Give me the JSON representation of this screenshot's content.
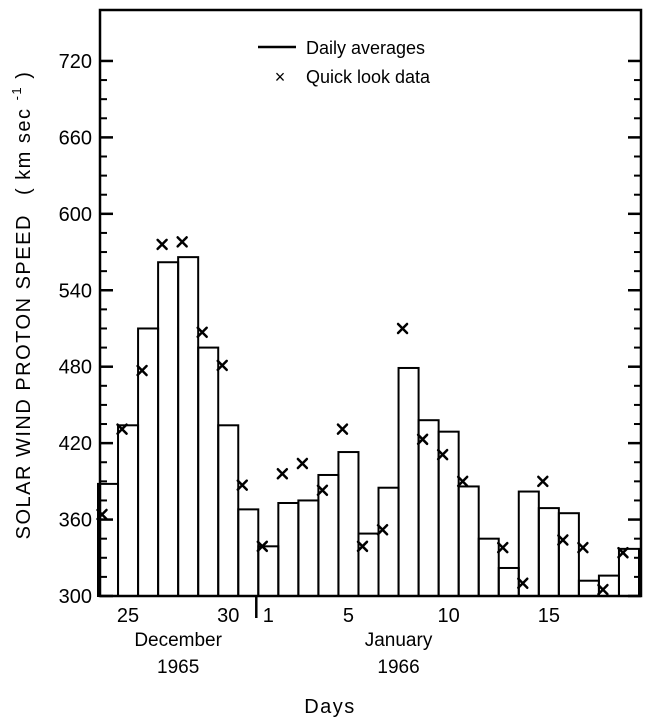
{
  "chart_data": {
    "type": "bar",
    "ylabel_main": "SOLAR WIND PROTON SPEED",
    "ylabel_unit_prefix": "( km sec",
    "ylabel_unit_exponent": "-1",
    "ylabel_unit_suffix": ")",
    "xlabel": "Days",
    "ylim": [
      300,
      760
    ],
    "yticks": [
      300,
      360,
      420,
      480,
      540,
      600,
      660,
      720
    ],
    "ytick_labels": [
      "300",
      "360",
      "420",
      "480",
      "540",
      "600",
      "660",
      "720"
    ],
    "xlim": [
      23.6,
      50.6
    ],
    "xtick_labels": [
      {
        "label": "25",
        "day": 25
      },
      {
        "label": "30",
        "day": 30
      },
      {
        "label": "1",
        "day": 32
      },
      {
        "label": "5",
        "day": 36
      },
      {
        "label": "10",
        "day": 41
      },
      {
        "label": "15",
        "day": 46
      }
    ],
    "month_boundary_day": 31.5,
    "month_labels": [
      {
        "month": "December",
        "year": "1965",
        "center_day": 27.5
      },
      {
        "month": "January",
        "year": "1966",
        "center_day": 38.5
      }
    ],
    "legend": {
      "placement": "top-center",
      "line_label": "Daily averages",
      "marker_label": "Quick look data",
      "marker_symbol": "×"
    },
    "daily_averages": [
      {
        "day": 24,
        "value": 388
      },
      {
        "day": 25,
        "value": 434
      },
      {
        "day": 26,
        "value": 510
      },
      {
        "day": 27,
        "value": 562
      },
      {
        "day": 28,
        "value": 566
      },
      {
        "day": 29,
        "value": 495
      },
      {
        "day": 30,
        "value": 434
      },
      {
        "day": 31,
        "value": 368
      },
      {
        "day": 32,
        "value": 339
      },
      {
        "day": 33,
        "value": 373
      },
      {
        "day": 34,
        "value": 375
      },
      {
        "day": 35,
        "value": 395
      },
      {
        "day": 36,
        "value": 413
      },
      {
        "day": 37,
        "value": 349
      },
      {
        "day": 38,
        "value": 385
      },
      {
        "day": 39,
        "value": 479
      },
      {
        "day": 40,
        "value": 438
      },
      {
        "day": 41,
        "value": 429
      },
      {
        "day": 42,
        "value": 386
      },
      {
        "day": 43,
        "value": 345
      },
      {
        "day": 44,
        "value": 322
      },
      {
        "day": 45,
        "value": 382
      },
      {
        "day": 46,
        "value": 369
      },
      {
        "day": 47,
        "value": 365
      },
      {
        "day": 48,
        "value": 312
      },
      {
        "day": 49,
        "value": 316
      },
      {
        "day": 50,
        "value": 337
      }
    ],
    "quick_look_data": [
      {
        "day": 24,
        "value": 364
      },
      {
        "day": 25,
        "value": 431
      },
      {
        "day": 26,
        "value": 477
      },
      {
        "day": 27,
        "value": 576
      },
      {
        "day": 28,
        "value": 578
      },
      {
        "day": 29,
        "value": 507
      },
      {
        "day": 30,
        "value": 481
      },
      {
        "day": 31,
        "value": 387
      },
      {
        "day": 32,
        "value": 339
      },
      {
        "day": 33,
        "value": 396
      },
      {
        "day": 34,
        "value": 404
      },
      {
        "day": 35,
        "value": 383
      },
      {
        "day": 36,
        "value": 431
      },
      {
        "day": 37,
        "value": 339
      },
      {
        "day": 38,
        "value": 352
      },
      {
        "day": 39,
        "value": 510
      },
      {
        "day": 40,
        "value": 423
      },
      {
        "day": 41,
        "value": 411
      },
      {
        "day": 42,
        "value": 390
      },
      {
        "day": 44,
        "value": 338
      },
      {
        "day": 45,
        "value": 310
      },
      {
        "day": 46,
        "value": 390
      },
      {
        "day": 47,
        "value": 344
      },
      {
        "day": 48,
        "value": 338
      },
      {
        "day": 49,
        "value": 305
      },
      {
        "day": 50,
        "value": 334
      }
    ]
  }
}
